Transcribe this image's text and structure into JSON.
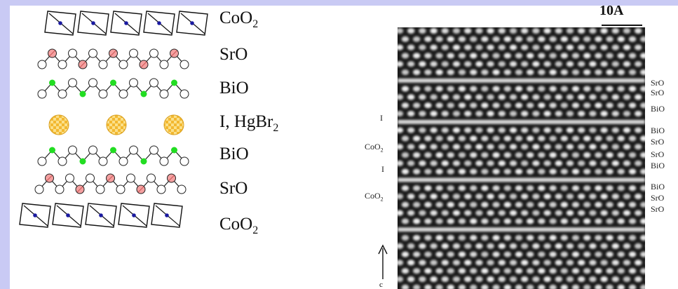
{
  "layers": [
    {
      "name": "CoO",
      "sub": "2"
    },
    {
      "name": "SrO",
      "sub": ""
    },
    {
      "name": "BiO",
      "sub": ""
    },
    {
      "name": "I, HgBr",
      "sub": "2"
    },
    {
      "name": "BiO",
      "sub": ""
    },
    {
      "name": "SrO",
      "sub": ""
    },
    {
      "name": "CoO",
      "sub": "2"
    }
  ],
  "scale_bar": "10A",
  "axis_letter": "c",
  "left_labels": {
    "l1": "I",
    "l2": "CoO",
    "l2_sub": "2",
    "l3": "I",
    "l4": "CoO",
    "l4_sub": "2"
  },
  "right_labels": [
    "SrO",
    "SrO",
    "BiO",
    "BiO",
    "SrO",
    "SrO",
    "BiO",
    "BiO",
    "SrO",
    "SrO"
  ],
  "colors": {
    "background": "#c9caf4",
    "sr_atom": "#f4a0a0",
    "bi_atom": "#22dd22",
    "iodine_atom": "#f2b830",
    "co_atom": "#1a1aa0"
  }
}
